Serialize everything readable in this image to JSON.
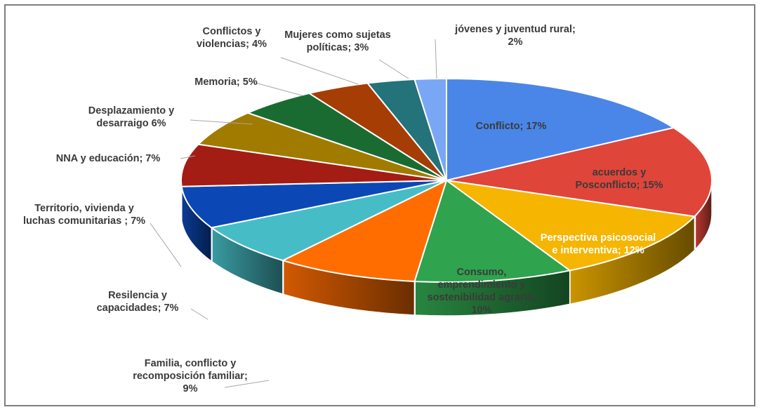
{
  "chart_data": {
    "type": "pie",
    "style": "3d-exploded-perspective",
    "slices": [
      {
        "label_lines": [
          "Conflicto;  17%"
        ],
        "value": 17,
        "color": "#4a86e8",
        "label_color": "#3a3a3a"
      },
      {
        "label_lines": [
          "acuerdos  y",
          "Posconflicto;  15%"
        ],
        "value": 15,
        "color": "#e0453a",
        "label_color": "#3a3a3a"
      },
      {
        "label_lines": [
          "Perspectiva psicosocial",
          "e interventiva; 12%"
        ],
        "value": 12,
        "color": "#f6b500",
        "label_color": "#ffffff"
      },
      {
        "label_lines": [
          "Consumo,",
          "emprendimiento y",
          "sostenibilidad agraria;",
          "10%"
        ],
        "value": 10,
        "color": "#2fa34e",
        "label_color": "#3a3a3a"
      },
      {
        "label_lines": [
          "Familia, conflicto y",
          "recomposición  familiar;",
          "9%"
        ],
        "value": 9,
        "color": "#ff6d01",
        "label_color": "#3a3a3a"
      },
      {
        "label_lines": [
          "Resilencia y",
          "capacidades; 7%"
        ],
        "value": 7,
        "color": "#46bdc6",
        "label_color": "#3a3a3a"
      },
      {
        "label_lines": [
          "Territorio, vivienda y",
          "luchas comunitarias ; 7%"
        ],
        "value": 7,
        "color": "#0b48b5",
        "label_color": "#3a3a3a"
      },
      {
        "label_lines": [
          "NNA  y educación; 7%"
        ],
        "value": 7,
        "color": "#a31d14",
        "label_color": "#3a3a3a"
      },
      {
        "label_lines": [
          "Desplazamiento y",
          "desarraigo 6%"
        ],
        "value": 6,
        "color": "#a07b00",
        "label_color": "#3a3a3a"
      },
      {
        "label_lines": [
          "Memoria; 5%"
        ],
        "value": 5,
        "color": "#1a6b32",
        "label_color": "#3a3a3a"
      },
      {
        "label_lines": [
          "Conflictos  y",
          "violencias; 4%"
        ],
        "value": 4,
        "color": "#a63d05",
        "label_color": "#3a3a3a"
      },
      {
        "label_lines": [
          "Mujeres como sujetas",
          "políticas; 3%"
        ],
        "value": 3,
        "color": "#24727a",
        "label_color": "#3a3a3a"
      },
      {
        "label_lines": [
          "jóvenes y juventud rural;",
          "2%"
        ],
        "value": 2,
        "color": "#7aa7f5",
        "label_color": "#3a3a3a"
      }
    ]
  }
}
